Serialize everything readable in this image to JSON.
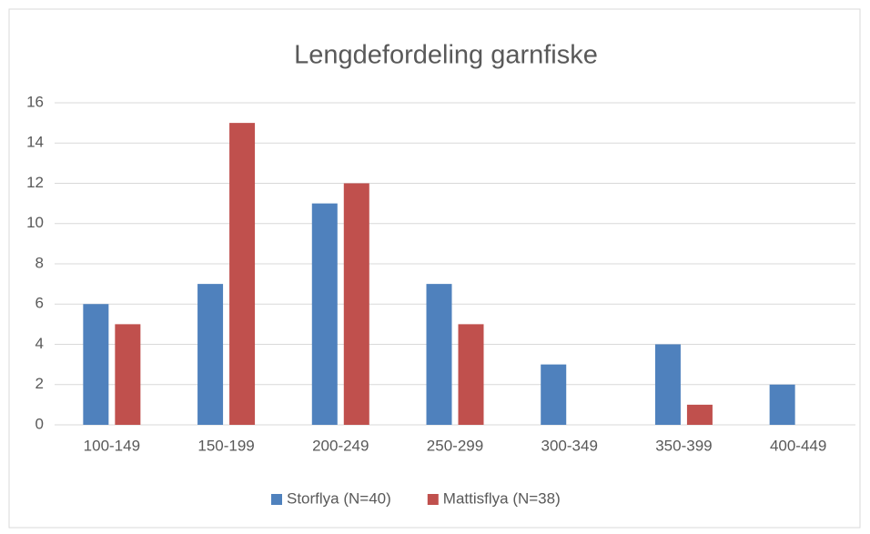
{
  "chart_data": {
    "type": "bar",
    "title": "Lengdefordeling garnfiske",
    "categories": [
      "100-149",
      "150-199",
      "200-249",
      "250-299",
      "300-349",
      "350-399",
      "400-449"
    ],
    "series": [
      {
        "name": "Storflya (N=40)",
        "color": "#4f81bd",
        "values": [
          6,
          7,
          11,
          7,
          3,
          4,
          2
        ]
      },
      {
        "name": "Mattisflya (N=38)",
        "color": "#c0504d",
        "values": [
          5,
          15,
          12,
          5,
          0,
          1,
          0
        ]
      }
    ],
    "ylim": [
      0,
      16
    ],
    "yticks": [
      0,
      2,
      4,
      6,
      8,
      10,
      12,
      14,
      16
    ],
    "grid": true,
    "legend": "bottom"
  }
}
